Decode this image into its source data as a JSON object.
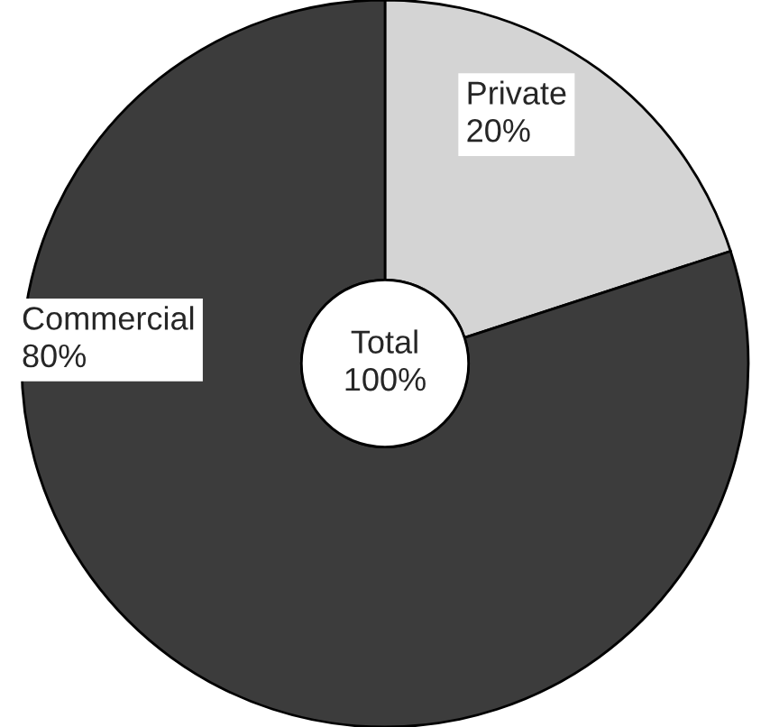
{
  "chart_data": {
    "type": "donut",
    "categories": [
      "Private",
      "Commercial"
    ],
    "values": [
      20,
      80
    ],
    "value_labels": [
      "20%",
      "80%"
    ],
    "colors": [
      "#d4d4d4",
      "#3c3c3c"
    ],
    "annotations": [
      "Total\n100%"
    ]
  }
}
